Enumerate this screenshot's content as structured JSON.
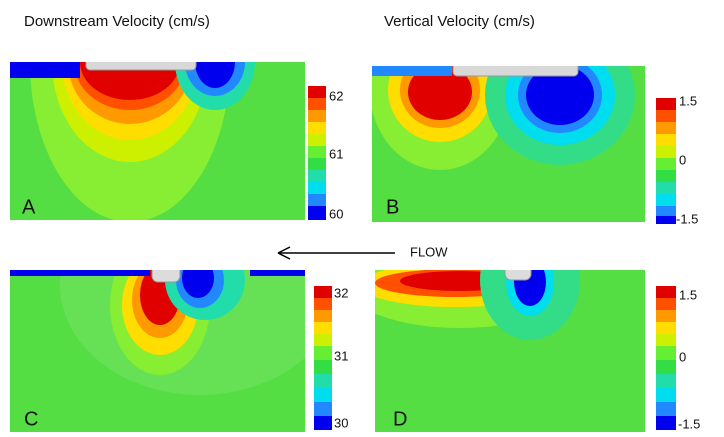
{
  "titles": [
    "Downstream Velocity (cm/s)",
    "Vertical Velocity (cm/s)"
  ],
  "flow_label": "FLOW",
  "panels": [
    {
      "label": "A",
      "colorbar_labels": [
        "62",
        "61",
        "60"
      ]
    },
    {
      "label": "B",
      "colorbar_labels": [
        "1.5",
        "0",
        "-1.5"
      ]
    },
    {
      "label": "C",
      "colorbar_labels": [
        "32",
        "31",
        "30"
      ]
    },
    {
      "label": "D",
      "colorbar_labels": [
        "1.5",
        "0",
        "-1.5"
      ]
    }
  ]
}
